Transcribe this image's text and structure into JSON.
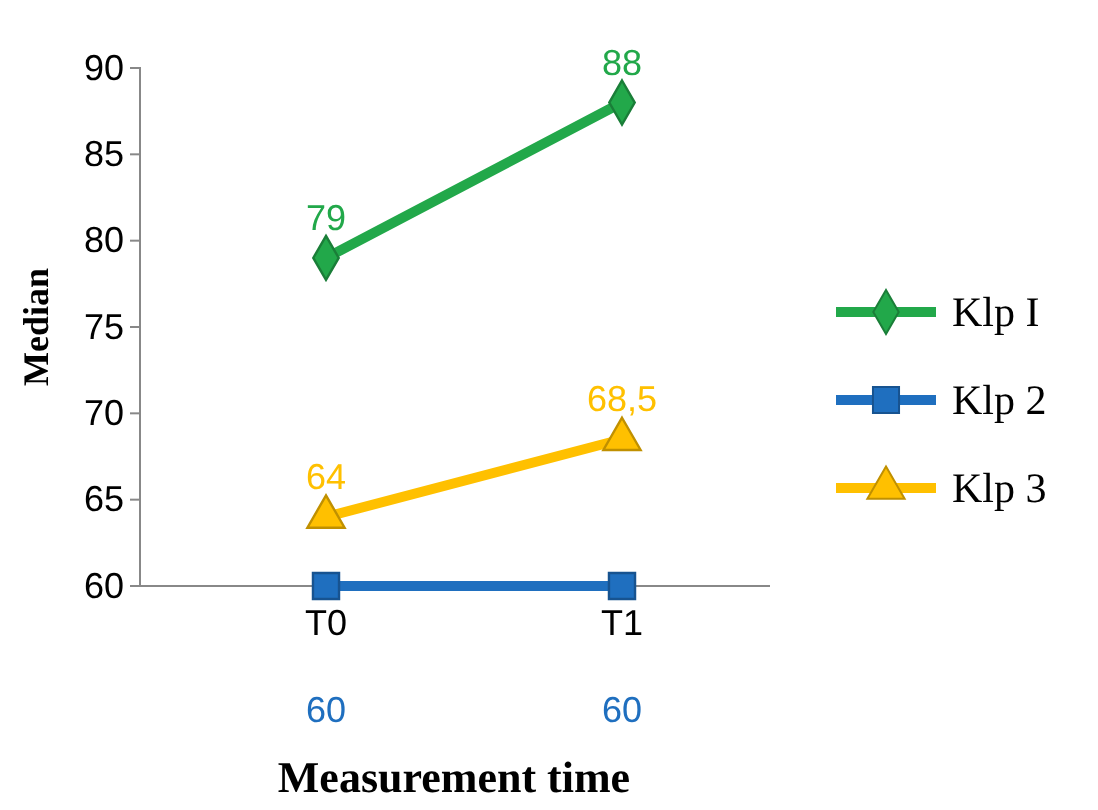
{
  "chart_data": {
    "type": "line",
    "xlabel": "Measurement time",
    "ylabel": "Median",
    "categories": [
      "T0",
      "T1"
    ],
    "series": [
      {
        "name": "Klp I",
        "color": "#22a84a",
        "values": [
          79,
          88
        ],
        "marker": "diamond",
        "value_labels": [
          "79",
          "88"
        ]
      },
      {
        "name": "Klp 2",
        "color": "#1f6fbf",
        "values": [
          60,
          60
        ],
        "marker": "square",
        "value_labels": [
          "60",
          "60"
        ]
      },
      {
        "name": "Klp 3",
        "color": "#ffc000",
        "values": [
          64,
          68.5
        ],
        "marker": "triangle",
        "value_labels": [
          "64",
          "68,5"
        ]
      }
    ],
    "ylim": [
      60,
      90
    ],
    "yticks": [
      60,
      65,
      70,
      75,
      80,
      85,
      90
    ],
    "grid": false,
    "legend": "right"
  }
}
